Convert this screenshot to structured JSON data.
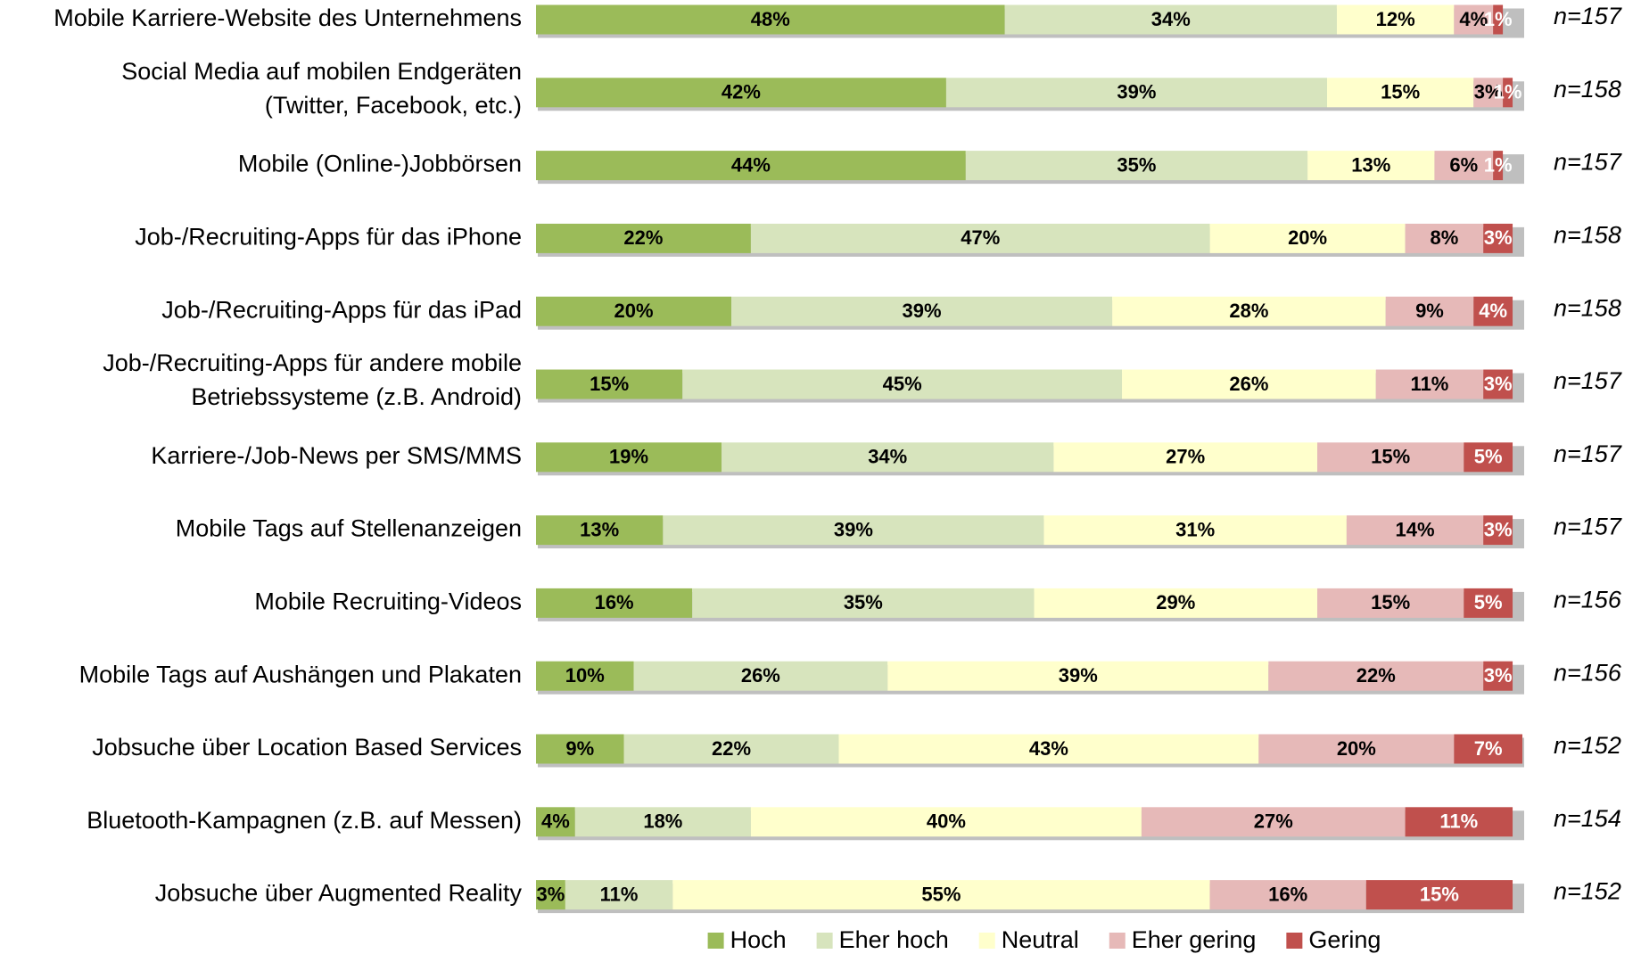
{
  "chart_data": {
    "type": "stacked-bar-horizontal",
    "categories": [
      "Mobile Karriere-Website des Unternehmens",
      "Social Media auf mobilen Endgeräten\n(Twitter, Facebook, etc.)",
      "Mobile (Online-)Jobbörsen",
      "Job-/Recruiting-Apps für das iPhone",
      "Job-/Recruiting-Apps für das iPad",
      "Job-/Recruiting-Apps für andere mobile\nBetriebssysteme (z.B. Android)",
      "Karriere-/Job-News per SMS/MMS",
      "Mobile Tags auf Stellenanzeigen",
      "Mobile Recruiting-Videos",
      "Mobile Tags auf Aushängen und Plakaten",
      "Jobsuche über Location Based Services",
      "Bluetooth-Kampagnen (z.B. auf Messen)",
      "Jobsuche über Augmented Reality"
    ],
    "n_labels": [
      "n=157",
      "n=158",
      "n=157",
      "n=158",
      "n=158",
      "n=157",
      "n=157",
      "n=157",
      "n=156",
      "n=156",
      "n=152",
      "n=154",
      "n=152"
    ],
    "series": [
      {
        "name": "Hoch",
        "color": "#9bbb59",
        "label_color": "#000000",
        "values": [
          48,
          42,
          44,
          22,
          20,
          15,
          19,
          13,
          16,
          10,
          9,
          4,
          3
        ],
        "value_labels": [
          "48%",
          "42%",
          "44%",
          "22%",
          "20%",
          "15%",
          "19%",
          "13%",
          "16%",
          "10%",
          "9%",
          "4%",
          "3%"
        ]
      },
      {
        "name": "Eher hoch",
        "color": "#d7e4bd",
        "label_color": "#000000",
        "values": [
          34,
          39,
          35,
          47,
          39,
          45,
          34,
          39,
          35,
          26,
          22,
          18,
          11
        ],
        "value_labels": [
          "34%",
          "39%",
          "35%",
          "47%",
          "39%",
          "45%",
          "34%",
          "39%",
          "35%",
          "26%",
          "22%",
          "18%",
          "11%"
        ]
      },
      {
        "name": "Neutral",
        "color": "#ffffcc",
        "label_color": "#000000",
        "values": [
          12,
          15,
          13,
          20,
          28,
          26,
          27,
          31,
          29,
          39,
          43,
          40,
          55
        ],
        "value_labels": [
          "12%",
          "15%",
          "13%",
          "20%",
          "28%",
          "26%",
          "27%",
          "31%",
          "29%",
          "39%",
          "43%",
          "40%",
          "55%"
        ]
      },
      {
        "name": "Eher gering",
        "color": "#e6b9b8",
        "label_color": "#000000",
        "values": [
          4,
          3,
          6,
          8,
          9,
          11,
          15,
          14,
          15,
          22,
          20,
          27,
          16
        ],
        "value_labels": [
          "4%",
          "3%",
          "6%",
          "8%",
          "9%",
          "11%",
          "15%",
          "14%",
          "15%",
          "22%",
          "20%",
          "27%",
          "16%"
        ]
      },
      {
        "name": "Gering",
        "color": "#c0504d",
        "label_color": "#ffffff",
        "values": [
          1,
          1,
          1,
          3,
          4,
          3,
          5,
          3,
          5,
          3,
          7,
          11,
          15
        ],
        "value_labels": [
          "1%",
          "1%",
          "1%",
          "3%",
          "4%",
          "3%",
          "5%",
          "3%",
          "5%",
          "3%",
          "7%",
          "11%",
          "15%"
        ]
      }
    ]
  }
}
